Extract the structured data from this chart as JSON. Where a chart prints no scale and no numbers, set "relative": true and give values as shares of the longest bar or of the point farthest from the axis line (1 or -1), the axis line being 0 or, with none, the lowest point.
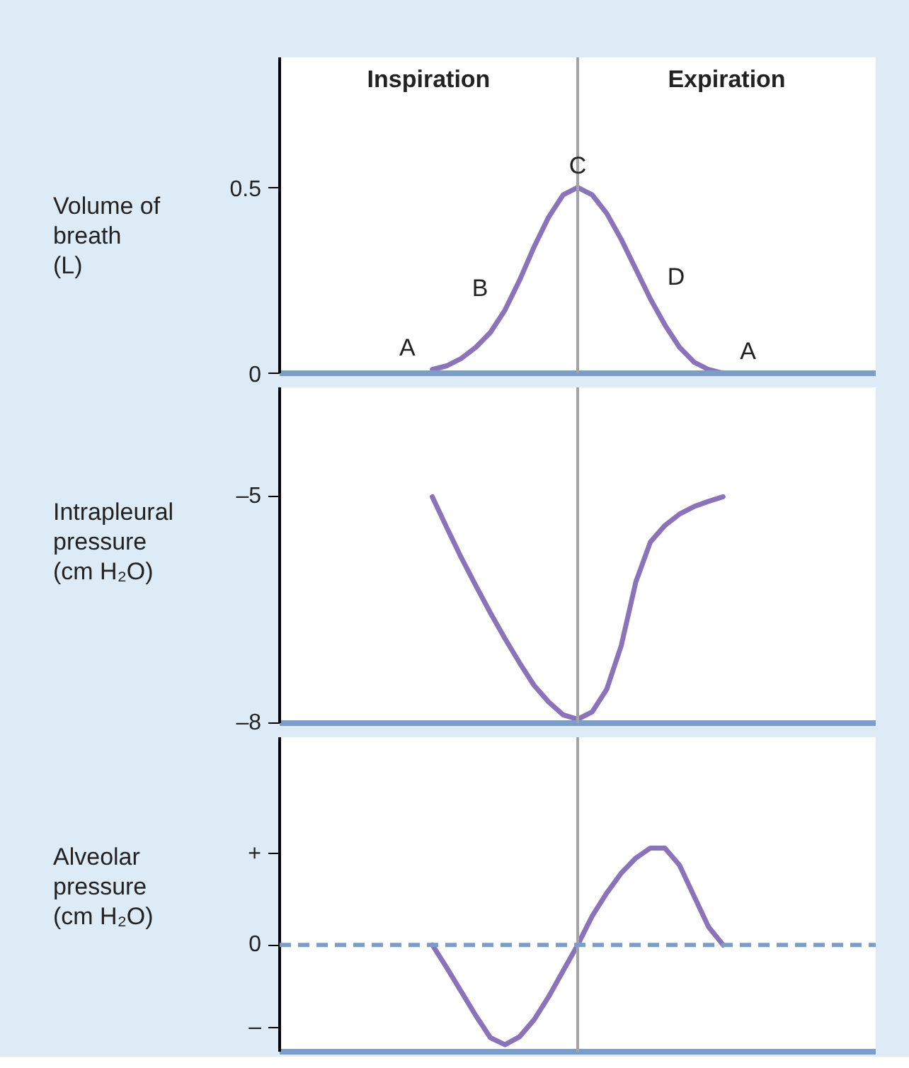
{
  "chart_data": [
    {
      "type": "line",
      "ylabel": "Volume of breath (L)",
      "categories": [
        null,
        null,
        null,
        null,
        null,
        null,
        null,
        null,
        null,
        null,
        null,
        null,
        null,
        null,
        null,
        null,
        null,
        null,
        null,
        null,
        null,
        null,
        null,
        null,
        null,
        null,
        null,
        null,
        null,
        null,
        null,
        null,
        null,
        null,
        null,
        null,
        null,
        null,
        null,
        null,
        null
      ],
      "ylim": [
        0,
        0.85
      ],
      "yticks": [
        0,
        0.5
      ],
      "tick_labels": "y",
      "grid": false,
      "annotations": [
        "Inspiration",
        "Expiration",
        "A",
        "B",
        "C",
        "D",
        "A"
      ],
      "series": [
        {
          "color": "#8a73b8",
          "values": [
            null,
            null,
            null,
            null,
            null,
            null,
            null,
            null,
            null,
            null,
            0.01,
            0.02,
            0.04,
            0.07,
            0.11,
            0.17,
            0.25,
            0.34,
            0.42,
            0.48,
            0.5,
            0.48,
            0.43,
            0.36,
            0.28,
            0.2,
            0.13,
            0.07,
            0.03,
            0.01,
            0.0,
            null,
            null,
            null,
            null,
            null,
            null,
            null,
            null,
            null,
            null
          ]
        }
      ]
    },
    {
      "type": "line",
      "ylabel": "Intrapleural pressure (cm H₂O)",
      "categories": [
        null,
        null,
        null,
        null,
        null,
        null,
        null,
        null,
        null,
        null,
        null,
        null,
        null,
        null,
        null,
        null,
        null,
        null,
        null,
        null,
        null,
        null,
        null,
        null,
        null,
        null,
        null,
        null,
        null,
        null,
        null,
        null,
        null,
        null,
        null,
        null,
        null,
        null,
        null,
        null,
        null
      ],
      "ylim": [
        -8,
        -3.55
      ],
      "yticks": [
        {
          "value": -5,
          "label": "–5"
        },
        {
          "value": -8,
          "label": "–8"
        }
      ],
      "tick_labels": "y",
      "grid": false,
      "series": [
        {
          "color": "#8a73b8",
          "values": [
            null,
            null,
            null,
            null,
            null,
            null,
            null,
            null,
            null,
            null,
            -5.0,
            -5.41,
            -5.81,
            -6.18,
            -6.54,
            -6.88,
            -7.2,
            -7.5,
            -7.72,
            -7.89,
            -7.95,
            -7.85,
            -7.55,
            -6.97,
            -6.13,
            -5.6,
            -5.38,
            -5.23,
            -5.13,
            -5.06,
            -5.0,
            null,
            null,
            null,
            null,
            null,
            null,
            null,
            null,
            null,
            null
          ]
        }
      ]
    },
    {
      "type": "line",
      "ylabel": "Alveolar pressure (cm H₂O)",
      "categories": [
        null,
        null,
        null,
        null,
        null,
        null,
        null,
        null,
        null,
        null,
        null,
        null,
        null,
        null,
        null,
        null,
        null,
        null,
        null,
        null,
        null,
        null,
        null,
        null,
        null,
        null,
        null,
        null,
        null,
        null,
        null,
        null,
        null,
        null,
        null,
        null,
        null,
        null,
        null,
        null,
        null
      ],
      "relative": true,
      "annotations": [
        "+",
        "0",
        "–"
      ],
      "tick_labels": "y",
      "grid": false,
      "ref_lines": [
        {
          "axis": "y",
          "value": 0,
          "color": "#7b9dc9",
          "line_style": "dashed"
        }
      ],
      "series": [
        {
          "color": "#8a73b8",
          "values": [
            null,
            null,
            null,
            null,
            null,
            null,
            null,
            null,
            null,
            null,
            0,
            -0.23,
            -0.47,
            -0.71,
            -0.93,
            -1.0,
            -0.92,
            -0.75,
            -0.52,
            -0.26,
            0,
            0.29,
            0.52,
            0.72,
            0.87,
            0.97,
            0.97,
            0.8,
            0.49,
            0.18,
            0,
            null,
            null,
            null,
            null,
            null,
            null,
            null,
            null,
            null,
            null
          ]
        }
      ]
    }
  ]
}
